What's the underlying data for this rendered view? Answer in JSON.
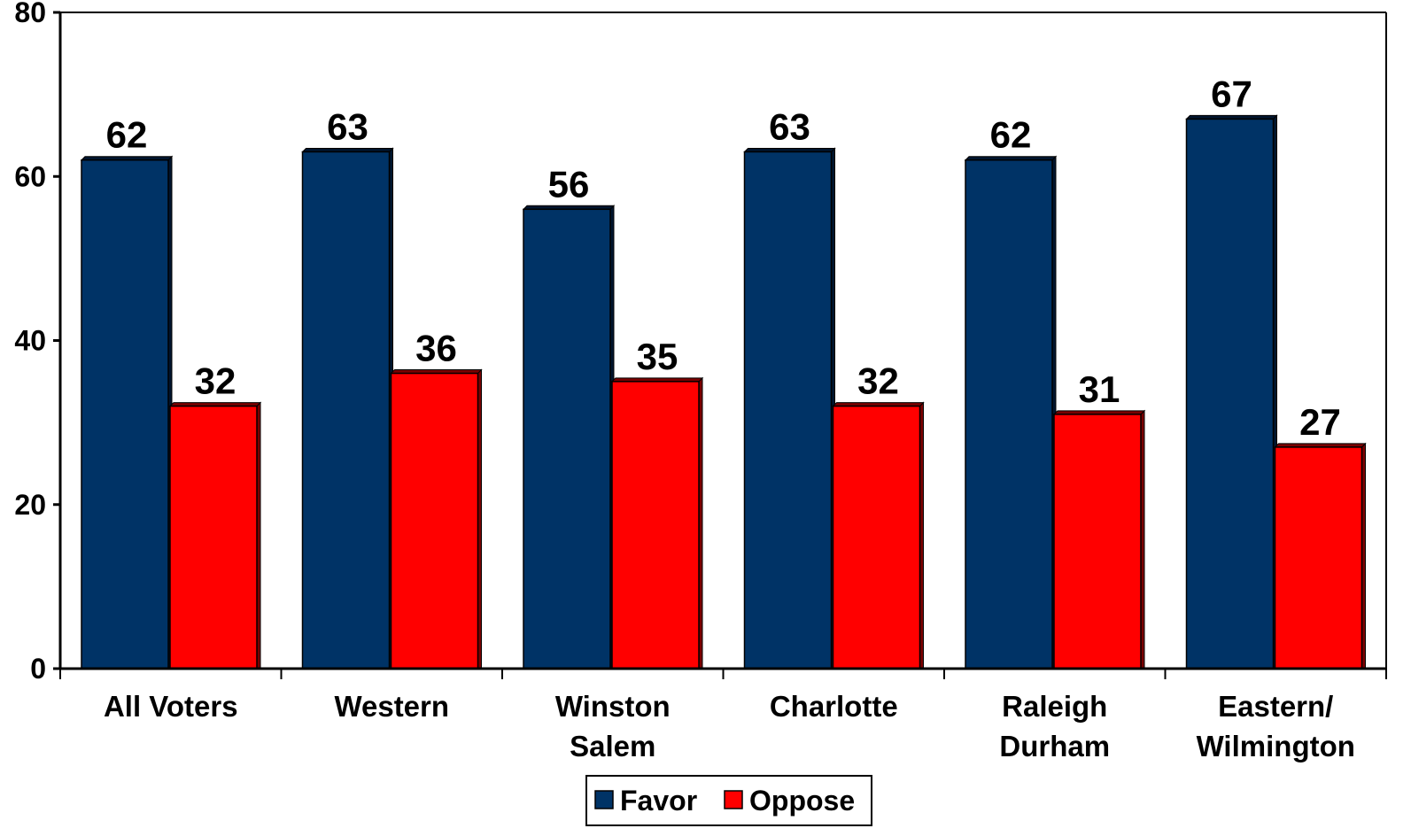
{
  "chart_data": {
    "type": "bar",
    "categories": [
      [
        "All Voters"
      ],
      [
        "Western"
      ],
      [
        "Winston",
        "Salem"
      ],
      [
        "Charlotte"
      ],
      [
        "Raleigh",
        "Durham"
      ],
      [
        "Eastern/",
        "Wilmington"
      ]
    ],
    "series": [
      {
        "name": "Favor",
        "color": "#003366",
        "values": [
          62,
          63,
          56,
          63,
          62,
          67
        ]
      },
      {
        "name": "Oppose",
        "color": "#ff0000",
        "values": [
          32,
          36,
          35,
          32,
          31,
          27
        ]
      }
    ],
    "ylim": [
      0,
      80
    ],
    "yticks": [
      0,
      20,
      40,
      60,
      80
    ],
    "grid": false,
    "legend_position": "bottom-center",
    "data_labels": true
  }
}
